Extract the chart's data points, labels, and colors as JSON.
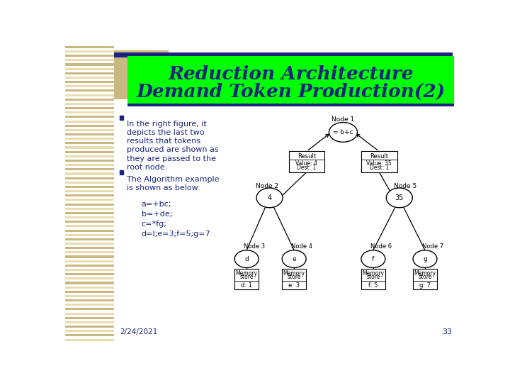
{
  "title_line1": "Reduction Architecture",
  "title_line2": "Demand Token Production(2)",
  "title_bg_color": "#00ff00",
  "title_text_color": "#1a237e",
  "slide_bg_color": "#ffffff",
  "stripe_color_dark": "#c8b882",
  "stripe_color_light": "#e8ddb0",
  "header_bar_color": "#1a237e",
  "body_text_color": "#1a237e",
  "date_text": "2/24/2021",
  "page_number": "33",
  "node1_label": "Node 1",
  "node1_content": "= b+c",
  "node2_label": "Node 2",
  "node2_content": "4",
  "node5_label": "Node 5",
  "node5_content": "35",
  "node3_label": "Node 3",
  "node3_content": "d",
  "node4_label": "Node 4",
  "node4_content": "e",
  "node6_label": "Node 6",
  "node6_content": "f",
  "node7_label": "Node 7",
  "node7_content": "g",
  "result_box1_lines": [
    "Result",
    "Value: 4",
    "Dest: 1"
  ],
  "result_box2_lines": [
    "Result",
    "Value: 35",
    "Dest: 1"
  ],
  "mem_box1_lines": [
    "Memory",
    "store",
    "d: 1"
  ],
  "mem_box2_lines": [
    "Memory",
    "store",
    "e: 3"
  ],
  "mem_box3_lines": [
    "Memory",
    "store",
    "f: 5"
  ],
  "mem_box4_lines": [
    "Memory",
    "store",
    "g: 7"
  ],
  "bullet1_lines": [
    "In the right figure, it",
    "depicts the last two",
    "results that tokens",
    "produced are shown as",
    "they are passed to the",
    "root node."
  ],
  "bullet2_lines": [
    "The Algorithm example",
    "is shown as below:"
  ],
  "code_lines": [
    "a=+bc;",
    "b=+de;",
    "c=*fg;",
    "d=l;e=3;f=5;g=7"
  ]
}
